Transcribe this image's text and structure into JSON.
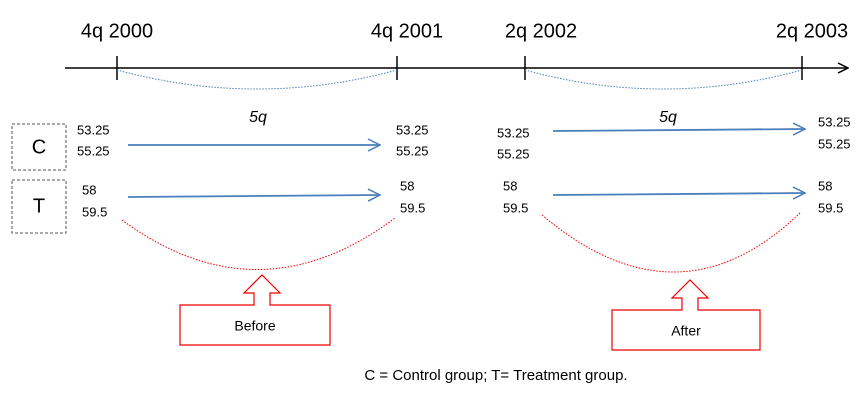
{
  "timeline": {
    "ticks": [
      "4q 2000",
      "4q 2001",
      "2q 2002",
      "2q 2003"
    ]
  },
  "groups": [
    "C",
    "T"
  ],
  "periods": [
    {
      "duration": "5q",
      "label": "Before",
      "start": {
        "control": [
          53.25,
          55.25
        ],
        "treatment": [
          58,
          59.5
        ]
      },
      "end": {
        "control": [
          53.25,
          55.25
        ],
        "treatment": [
          58,
          59.5
        ]
      }
    },
    {
      "duration": "5q",
      "label": "After",
      "start": {
        "control": [
          53.25,
          55.25
        ],
        "treatment": [
          58,
          59.5
        ]
      },
      "end": {
        "control": [
          53.25,
          55.25
        ],
        "treatment": [
          58,
          59.5
        ]
      }
    }
  ],
  "caption": "C = Control group; T= Treatment group."
}
